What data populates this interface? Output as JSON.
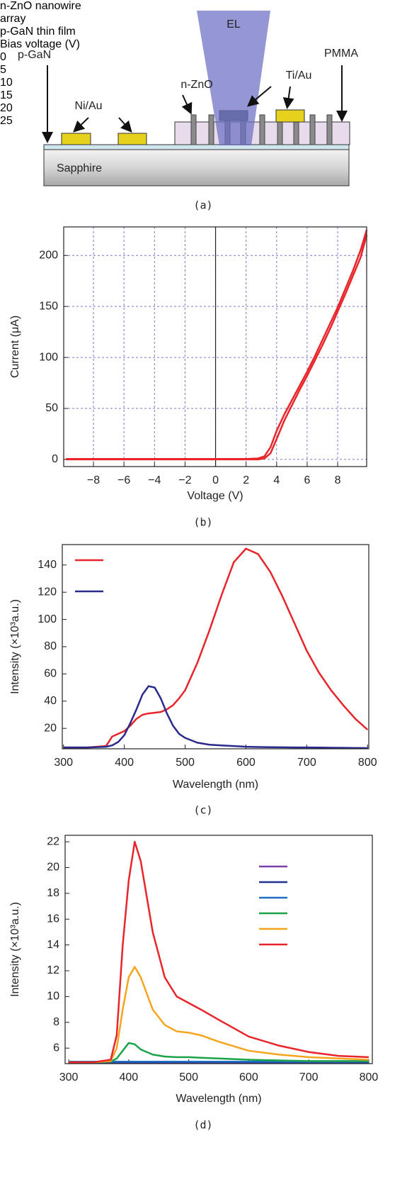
{
  "diagram": {
    "beam": "EL",
    "p_gan": "p-GaN",
    "ni_au": "Ni/Au",
    "n_zno": "n-ZnO",
    "ti_au": "Ti/Au",
    "pmma": "PMMA",
    "substrate": "Sapphire",
    "caption": "(a)"
  },
  "chart_data": [
    {
      "type": "line",
      "caption": "(b)",
      "x_label": "Voltage (V)",
      "y_label": "Current (μA)",
      "xlim": [
        -9.95,
        9.9
      ],
      "ylim": [
        -7,
        228
      ],
      "xticks": [
        {
          "value": -8,
          "label": "−8"
        },
        {
          "value": -6,
          "label": "−6"
        },
        {
          "value": -4,
          "label": "−4"
        },
        {
          "value": -2,
          "label": "−2"
        },
        0,
        2,
        4,
        6,
        8
      ],
      "yticks": [
        0,
        50,
        100,
        150,
        200
      ],
      "grid": true,
      "zero_line": true,
      "x": [
        -9.8,
        -8,
        -6,
        -4,
        -2,
        0,
        2,
        2.8,
        3.2,
        3.6,
        4,
        4.5,
        5,
        5.5,
        6,
        6.5,
        7,
        7.5,
        8,
        8.5,
        9,
        9.5,
        9.9
      ],
      "series": [
        {
          "color": "#e8252a",
          "values": [
            0.5,
            0.5,
            0.5,
            0.5,
            0.5,
            0.5,
            0.5,
            1,
            3,
            12,
            28,
            44,
            58,
            72,
            86,
            101,
            117,
            133,
            149,
            167,
            185,
            205,
            225
          ]
        },
        {
          "color": "#e8252a",
          "values": [
            0,
            0,
            0,
            0,
            0,
            0,
            0,
            0,
            1,
            6,
            20,
            38,
            53,
            68,
            82,
            97,
            112,
            128,
            145,
            162,
            180,
            198,
            220
          ]
        }
      ]
    },
    {
      "type": "line",
      "caption": "(c)",
      "x_label": "Wavelength (nm)",
      "y_label": "Intensity (×10³a.u.)",
      "xlim": [
        298,
        802
      ],
      "ylim": [
        5,
        155
      ],
      "xticks": [
        300,
        400,
        500,
        600,
        700,
        800
      ],
      "yticks": [
        20,
        40,
        60,
        80,
        100,
        120,
        140
      ],
      "grid": false,
      "legend": "upper left",
      "x": [
        300,
        340,
        370,
        380,
        390,
        400,
        410,
        420,
        430,
        440,
        450,
        460,
        470,
        480,
        490,
        500,
        520,
        540,
        560,
        580,
        600,
        620,
        640,
        660,
        680,
        700,
        720,
        740,
        760,
        780,
        800
      ],
      "series": [
        {
          "name": "n-ZnO nanowire array",
          "color": "#e8252a",
          "values": [
            6,
            6,
            7,
            14,
            16,
            18,
            22,
            27,
            30,
            31,
            31.5,
            32,
            34,
            37,
            42,
            48,
            68,
            92,
            118,
            142,
            152,
            148,
            135,
            117,
            97,
            77,
            61,
            48,
            37,
            27,
            19
          ]
        },
        {
          "name": "p-GaN thin film",
          "color": "#2a2a8c",
          "values": [
            6,
            6,
            6.5,
            7.5,
            10,
            15,
            24,
            34,
            45,
            51,
            50,
            42,
            31,
            22,
            16,
            13,
            9.5,
            8,
            7.5,
            7,
            6.5,
            6.3,
            6.2,
            6.1,
            6,
            6,
            5.9,
            5.8,
            5.7,
            5.6,
            5.5
          ]
        }
      ]
    },
    {
      "type": "line",
      "caption": "(d)",
      "x_label": "Wavelength (nm)",
      "y_label": "Intensity (×10³a.u.)",
      "xlim": [
        294,
        806
      ],
      "ylim": [
        4.8,
        22.5
      ],
      "xticks": [
        300,
        400,
        500,
        600,
        700,
        800
      ],
      "yticks": [
        6,
        8,
        10,
        12,
        14,
        16,
        18,
        20,
        22
      ],
      "grid": false,
      "legend": "upper right",
      "legend_title": "Bias voltage (V)",
      "x": [
        300,
        340,
        370,
        380,
        390,
        400,
        410,
        420,
        440,
        460,
        480,
        500,
        520,
        550,
        600,
        650,
        700,
        750,
        800
      ],
      "series": [
        {
          "name": "0",
          "color": "#7b3fa8",
          "values": [
            4.9,
            4.9,
            4.9,
            4.9,
            4.9,
            4.9,
            4.9,
            4.9,
            4.9,
            4.9,
            4.9,
            4.9,
            4.9,
            4.9,
            4.9,
            4.9,
            4.9,
            4.9,
            4.9
          ]
        },
        {
          "name": "5",
          "color": "#23318f",
          "values": [
            4.9,
            4.9,
            4.9,
            4.9,
            4.9,
            4.9,
            4.9,
            4.9,
            4.9,
            4.9,
            4.9,
            4.9,
            4.9,
            4.9,
            4.9,
            4.9,
            4.9,
            4.9,
            4.9
          ]
        },
        {
          "name": "10",
          "color": "#1c6fc4",
          "values": [
            4.95,
            4.95,
            4.95,
            4.95,
            4.95,
            4.95,
            4.95,
            4.95,
            4.95,
            4.95,
            4.95,
            4.95,
            4.95,
            4.95,
            4.95,
            4.95,
            4.95,
            4.95,
            4.95
          ]
        },
        {
          "name": "15",
          "color": "#1ca34a",
          "values": [
            4.9,
            4.9,
            4.95,
            5.2,
            5.8,
            6.4,
            6.3,
            5.9,
            5.5,
            5.35,
            5.3,
            5.3,
            5.25,
            5.2,
            5.1,
            5.05,
            5,
            5,
            5
          ]
        },
        {
          "name": "20",
          "color": "#f5a51c",
          "values": [
            4.9,
            4.9,
            5,
            6,
            9,
            11.5,
            12.3,
            11.5,
            9,
            7.8,
            7.3,
            7.2,
            7,
            6.5,
            5.8,
            5.5,
            5.3,
            5.2,
            5.1
          ]
        },
        {
          "name": "25",
          "color": "#e8252a",
          "values": [
            4.9,
            4.9,
            5.1,
            7,
            14,
            19,
            22,
            20.5,
            15,
            11.5,
            10,
            9.5,
            9,
            8.2,
            6.9,
            6.2,
            5.7,
            5.4,
            5.3
          ]
        }
      ]
    }
  ]
}
